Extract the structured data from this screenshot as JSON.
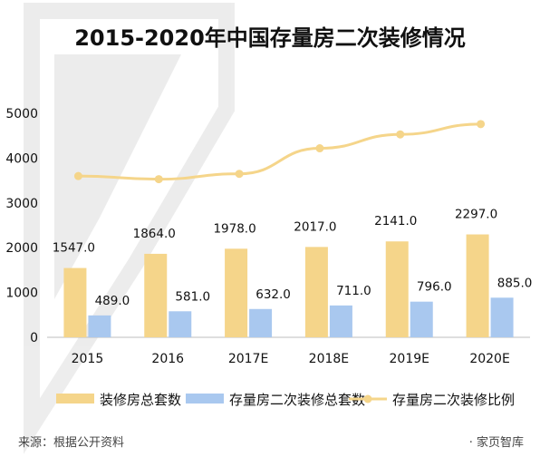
{
  "chart_data": {
    "type": "bar",
    "title": "2015-2020年中国存量房二次装修情况",
    "categories": [
      "2015",
      "2016",
      "2017E",
      "2018E",
      "2019E",
      "2020E"
    ],
    "y_ticks": [
      "0",
      "1000",
      "2000",
      "3000",
      "4000",
      "5000"
    ],
    "ylim": [
      0,
      5000
    ],
    "grid": false,
    "legend_position": "bottom",
    "series": [
      {
        "name": "装修房总套数",
        "type": "bar",
        "color": "#f5d58a",
        "values": [
          1547.0,
          1864.0,
          1978.0,
          2017.0,
          2141.0,
          2297.0
        ],
        "labels": [
          "1547.0",
          "1864.0",
          "1978.0",
          "2017.0",
          "2141.0",
          "2297.0"
        ]
      },
      {
        "name": "存量房二次装修总套数",
        "type": "bar",
        "color": "#a9c8ef",
        "values": [
          489.0,
          581.0,
          632.0,
          711.0,
          796.0,
          885.0
        ],
        "labels": [
          "489.0",
          "581.0",
          "632.0",
          "711.0",
          "796.0",
          "885.0"
        ]
      },
      {
        "name": "存量房二次装修比例",
        "type": "line",
        "color": "#f5d58a",
        "values": [
          3600,
          3530,
          3650,
          4220,
          4530,
          4760
        ]
      }
    ]
  },
  "footer": {
    "source": "来源：根据公开资料",
    "brand": "· 家页智库"
  }
}
